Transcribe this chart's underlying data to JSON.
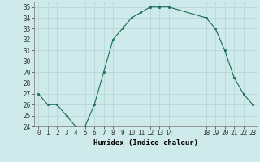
{
  "x": [
    0,
    1,
    2,
    3,
    4,
    5,
    6,
    7,
    8,
    9,
    10,
    11,
    12,
    13,
    14,
    18,
    19,
    20,
    21,
    22,
    23
  ],
  "y": [
    27,
    26,
    26,
    25,
    24,
    24,
    26,
    29,
    32,
    33,
    34,
    34.5,
    35,
    35,
    35,
    34,
    33,
    31,
    28.5,
    27,
    26
  ],
  "line_color": "#1a6b5a",
  "marker_color": "#1a6b5a",
  "bg_color": "#ceeaea",
  "grid_color": "#b8d8d8",
  "xlabel": "Humidex (Indice chaleur)",
  "xlim": [
    -0.5,
    23.5
  ],
  "ylim": [
    24,
    35.5
  ],
  "xticks": [
    0,
    1,
    2,
    3,
    4,
    5,
    6,
    7,
    8,
    9,
    10,
    11,
    12,
    13,
    14,
    18,
    19,
    20,
    21,
    22,
    23
  ],
  "yticks": [
    24,
    25,
    26,
    27,
    28,
    29,
    30,
    31,
    32,
    33,
    34,
    35
  ],
  "xlabel_fontsize": 6.5,
  "tick_fontsize": 5.5
}
